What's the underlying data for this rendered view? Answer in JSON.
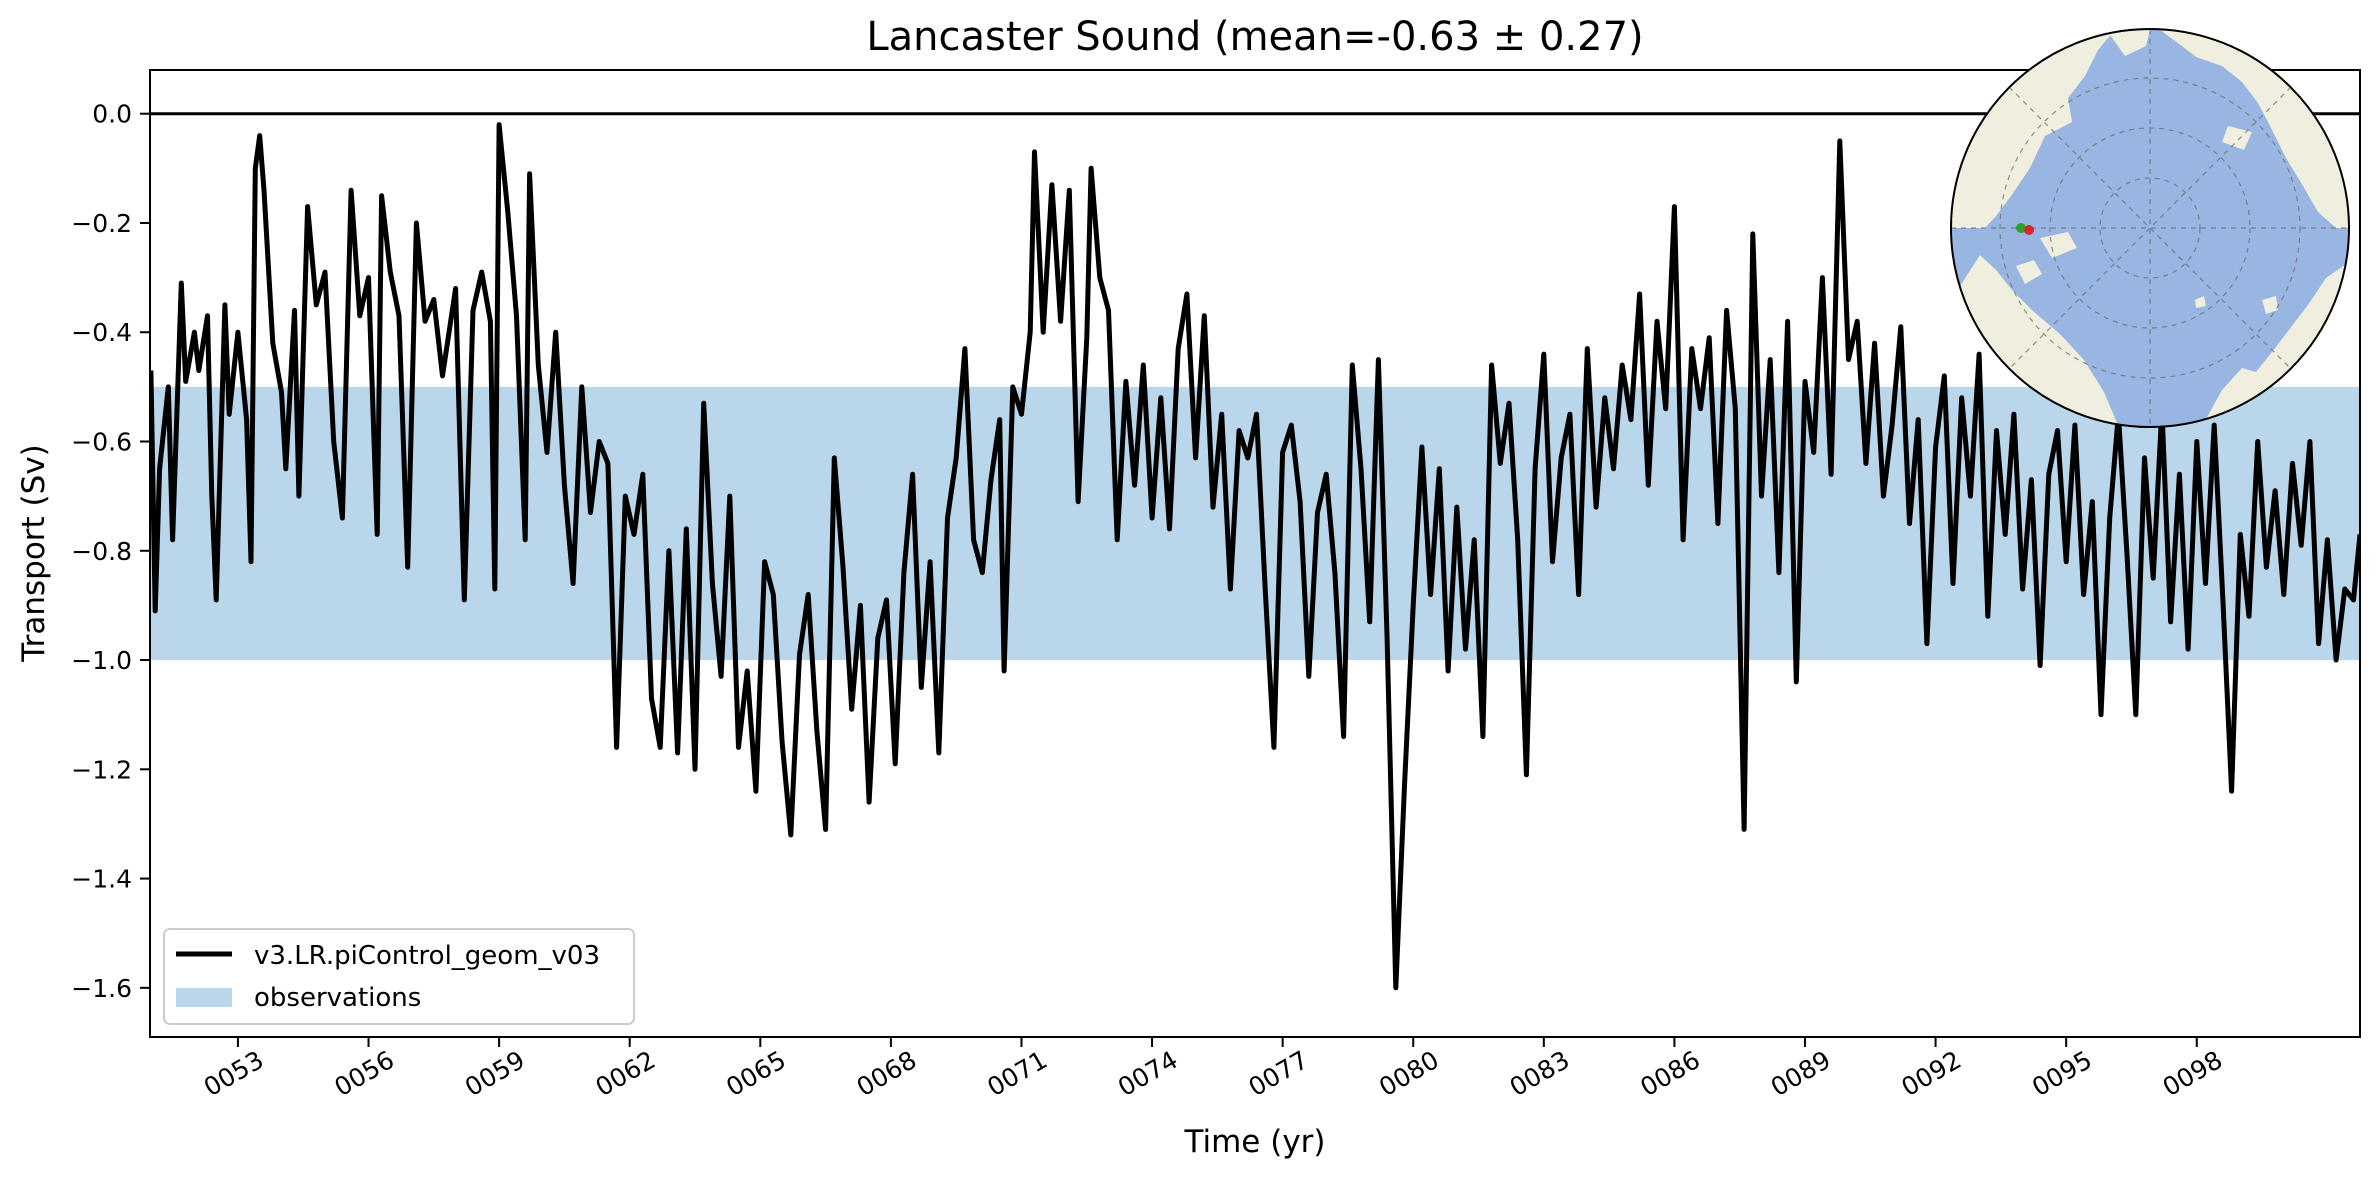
{
  "chart_data": {
    "type": "line",
    "title": "Lancaster Sound (mean=-0.63 ± 0.27)",
    "xlabel": "Time (yr)",
    "ylabel": "Transport (Sv)",
    "xlim": [
      50.98,
      101.75
    ],
    "ylim": [
      -1.69,
      0.08
    ],
    "xticks": [
      53,
      56,
      59,
      62,
      65,
      68,
      71,
      74,
      77,
      80,
      83,
      86,
      89,
      92,
      95,
      98
    ],
    "xtick_labels": [
      "0053",
      "0056",
      "0059",
      "0062",
      "0065",
      "0068",
      "0071",
      "0074",
      "0077",
      "0080",
      "0083",
      "0086",
      "0089",
      "0092",
      "0095",
      "0098"
    ],
    "yticks": [
      0.0,
      -0.2,
      -0.4,
      -0.6,
      -0.8,
      -1.0,
      -1.2,
      -1.4,
      -1.6
    ],
    "ytick_labels": [
      "0.0",
      "−0.2",
      "−0.4",
      "−0.6",
      "−0.8",
      "−1.0",
      "−1.2",
      "−1.4",
      "−1.6"
    ],
    "reference_line": 0.0,
    "observation_band": {
      "label": "observations",
      "ymin": -1.0,
      "ymax": -0.5,
      "color": "#bad6ea"
    },
    "series": [
      {
        "name": "v3.LR.piControl_geom_v03",
        "color": "#000000",
        "sampling": "monthly",
        "x_start": 51.0,
        "x_end": 101.75,
        "anchors": [
          [
            51.0,
            -0.47
          ],
          [
            51.1,
            -0.91
          ],
          [
            51.2,
            -0.65
          ],
          [
            51.4,
            -0.5
          ],
          [
            51.5,
            -0.78
          ],
          [
            51.7,
            -0.31
          ],
          [
            51.8,
            -0.49
          ],
          [
            52.0,
            -0.4
          ],
          [
            52.1,
            -0.47
          ],
          [
            52.3,
            -0.37
          ],
          [
            52.4,
            -0.7
          ],
          [
            52.5,
            -0.89
          ],
          [
            52.7,
            -0.35
          ],
          [
            52.8,
            -0.55
          ],
          [
            53.0,
            -0.4
          ],
          [
            53.2,
            -0.56
          ],
          [
            53.3,
            -0.82
          ],
          [
            53.4,
            -0.1
          ],
          [
            53.5,
            -0.04
          ],
          [
            53.6,
            -0.14
          ],
          [
            53.8,
            -0.42
          ],
          [
            54.0,
            -0.51
          ],
          [
            54.1,
            -0.65
          ],
          [
            54.3,
            -0.36
          ],
          [
            54.4,
            -0.7
          ],
          [
            54.6,
            -0.17
          ],
          [
            54.8,
            -0.35
          ],
          [
            55.0,
            -0.29
          ],
          [
            55.2,
            -0.6
          ],
          [
            55.4,
            -0.74
          ],
          [
            55.6,
            -0.14
          ],
          [
            55.8,
            -0.37
          ],
          [
            56.0,
            -0.3
          ],
          [
            56.2,
            -0.77
          ],
          [
            56.3,
            -0.15
          ],
          [
            56.5,
            -0.29
          ],
          [
            56.7,
            -0.37
          ],
          [
            56.9,
            -0.83
          ],
          [
            57.1,
            -0.2
          ],
          [
            57.3,
            -0.38
          ],
          [
            57.5,
            -0.34
          ],
          [
            57.7,
            -0.48
          ],
          [
            58.0,
            -0.32
          ],
          [
            58.2,
            -0.89
          ],
          [
            58.4,
            -0.36
          ],
          [
            58.6,
            -0.29
          ],
          [
            58.8,
            -0.38
          ],
          [
            58.9,
            -0.87
          ],
          [
            59.0,
            -0.02
          ],
          [
            59.2,
            -0.18
          ],
          [
            59.4,
            -0.37
          ],
          [
            59.6,
            -0.78
          ],
          [
            59.7,
            -0.11
          ],
          [
            59.9,
            -0.46
          ],
          [
            60.1,
            -0.62
          ],
          [
            60.3,
            -0.4
          ],
          [
            60.5,
            -0.68
          ],
          [
            60.7,
            -0.86
          ],
          [
            60.9,
            -0.5
          ],
          [
            61.1,
            -0.73
          ],
          [
            61.3,
            -0.6
          ],
          [
            61.5,
            -0.64
          ],
          [
            61.7,
            -1.16
          ],
          [
            61.9,
            -0.7
          ],
          [
            62.1,
            -0.77
          ],
          [
            62.3,
            -0.66
          ],
          [
            62.5,
            -1.07
          ],
          [
            62.7,
            -1.16
          ],
          [
            62.9,
            -0.8
          ],
          [
            63.1,
            -1.17
          ],
          [
            63.3,
            -0.76
          ],
          [
            63.5,
            -1.2
          ],
          [
            63.7,
            -0.53
          ],
          [
            63.9,
            -0.86
          ],
          [
            64.1,
            -1.03
          ],
          [
            64.3,
            -0.7
          ],
          [
            64.5,
            -1.16
          ],
          [
            64.7,
            -1.02
          ],
          [
            64.9,
            -1.24
          ],
          [
            65.1,
            -0.82
          ],
          [
            65.3,
            -0.88
          ],
          [
            65.5,
            -1.15
          ],
          [
            65.7,
            -1.32
          ],
          [
            65.9,
            -0.99
          ],
          [
            66.1,
            -0.88
          ],
          [
            66.3,
            -1.13
          ],
          [
            66.5,
            -1.31
          ],
          [
            66.7,
            -0.63
          ],
          [
            66.9,
            -0.83
          ],
          [
            67.1,
            -1.09
          ],
          [
            67.3,
            -0.9
          ],
          [
            67.5,
            -1.26
          ],
          [
            67.7,
            -0.96
          ],
          [
            67.9,
            -0.89
          ],
          [
            68.1,
            -1.19
          ],
          [
            68.3,
            -0.84
          ],
          [
            68.5,
            -0.66
          ],
          [
            68.7,
            -1.05
          ],
          [
            68.9,
            -0.82
          ],
          [
            69.1,
            -1.17
          ],
          [
            69.3,
            -0.74
          ],
          [
            69.5,
            -0.63
          ],
          [
            69.7,
            -0.43
          ],
          [
            69.9,
            -0.78
          ],
          [
            70.1,
            -0.84
          ],
          [
            70.3,
            -0.67
          ],
          [
            70.5,
            -0.56
          ],
          [
            70.6,
            -1.02
          ],
          [
            70.8,
            -0.5
          ],
          [
            71.0,
            -0.55
          ],
          [
            71.2,
            -0.4
          ],
          [
            71.3,
            -0.07
          ],
          [
            71.5,
            -0.4
          ],
          [
            71.7,
            -0.13
          ],
          [
            71.9,
            -0.38
          ],
          [
            72.1,
            -0.14
          ],
          [
            72.3,
            -0.71
          ],
          [
            72.5,
            -0.41
          ],
          [
            72.6,
            -0.1
          ],
          [
            72.8,
            -0.3
          ],
          [
            73.0,
            -0.36
          ],
          [
            73.2,
            -0.78
          ],
          [
            73.4,
            -0.49
          ],
          [
            73.6,
            -0.68
          ],
          [
            73.8,
            -0.46
          ],
          [
            74.0,
            -0.74
          ],
          [
            74.2,
            -0.52
          ],
          [
            74.4,
            -0.76
          ],
          [
            74.6,
            -0.43
          ],
          [
            74.8,
            -0.33
          ],
          [
            75.0,
            -0.63
          ],
          [
            75.2,
            -0.37
          ],
          [
            75.4,
            -0.72
          ],
          [
            75.6,
            -0.55
          ],
          [
            75.8,
            -0.87
          ],
          [
            76.0,
            -0.58
          ],
          [
            76.2,
            -0.63
          ],
          [
            76.4,
            -0.55
          ],
          [
            76.6,
            -0.87
          ],
          [
            76.8,
            -1.16
          ],
          [
            77.0,
            -0.62
          ],
          [
            77.2,
            -0.57
          ],
          [
            77.4,
            -0.71
          ],
          [
            77.6,
            -1.03
          ],
          [
            77.8,
            -0.73
          ],
          [
            78.0,
            -0.66
          ],
          [
            78.2,
            -0.84
          ],
          [
            78.4,
            -1.14
          ],
          [
            78.6,
            -0.46
          ],
          [
            78.8,
            -0.65
          ],
          [
            79.0,
            -0.93
          ],
          [
            79.2,
            -0.45
          ],
          [
            79.4,
            -0.96
          ],
          [
            79.6,
            -1.6
          ],
          [
            79.8,
            -1.23
          ],
          [
            80.0,
            -0.9
          ],
          [
            80.2,
            -0.61
          ],
          [
            80.4,
            -0.88
          ],
          [
            80.6,
            -0.65
          ],
          [
            80.8,
            -1.02
          ],
          [
            81.0,
            -0.72
          ],
          [
            81.2,
            -0.98
          ],
          [
            81.4,
            -0.78
          ],
          [
            81.6,
            -1.14
          ],
          [
            81.8,
            -0.46
          ],
          [
            82.0,
            -0.64
          ],
          [
            82.2,
            -0.53
          ],
          [
            82.4,
            -0.78
          ],
          [
            82.6,
            -1.21
          ],
          [
            82.8,
            -0.65
          ],
          [
            83.0,
            -0.44
          ],
          [
            83.2,
            -0.82
          ],
          [
            83.4,
            -0.63
          ],
          [
            83.6,
            -0.55
          ],
          [
            83.8,
            -0.88
          ],
          [
            84.0,
            -0.43
          ],
          [
            84.2,
            -0.72
          ],
          [
            84.4,
            -0.52
          ],
          [
            84.6,
            -0.65
          ],
          [
            84.8,
            -0.46
          ],
          [
            85.0,
            -0.56
          ],
          [
            85.2,
            -0.33
          ],
          [
            85.4,
            -0.68
          ],
          [
            85.6,
            -0.38
          ],
          [
            85.8,
            -0.54
          ],
          [
            86.0,
            -0.17
          ],
          [
            86.2,
            -0.78
          ],
          [
            86.4,
            -0.43
          ],
          [
            86.6,
            -0.54
          ],
          [
            86.8,
            -0.41
          ],
          [
            87.0,
            -0.75
          ],
          [
            87.2,
            -0.36
          ],
          [
            87.4,
            -0.54
          ],
          [
            87.6,
            -1.31
          ],
          [
            87.8,
            -0.22
          ],
          [
            88.0,
            -0.7
          ],
          [
            88.2,
            -0.45
          ],
          [
            88.4,
            -0.84
          ],
          [
            88.6,
            -0.38
          ],
          [
            88.8,
            -1.04
          ],
          [
            89.0,
            -0.49
          ],
          [
            89.2,
            -0.62
          ],
          [
            89.4,
            -0.3
          ],
          [
            89.6,
            -0.66
          ],
          [
            89.8,
            -0.05
          ],
          [
            90.0,
            -0.45
          ],
          [
            90.2,
            -0.38
          ],
          [
            90.4,
            -0.64
          ],
          [
            90.6,
            -0.42
          ],
          [
            90.8,
            -0.7
          ],
          [
            91.0,
            -0.57
          ],
          [
            91.2,
            -0.39
          ],
          [
            91.4,
            -0.75
          ],
          [
            91.6,
            -0.56
          ],
          [
            91.8,
            -0.97
          ],
          [
            92.0,
            -0.61
          ],
          [
            92.2,
            -0.48
          ],
          [
            92.4,
            -0.86
          ],
          [
            92.6,
            -0.52
          ],
          [
            92.8,
            -0.7
          ],
          [
            93.0,
            -0.44
          ],
          [
            93.2,
            -0.92
          ],
          [
            93.4,
            -0.58
          ],
          [
            93.6,
            -0.77
          ],
          [
            93.8,
            -0.55
          ],
          [
            94.0,
            -0.87
          ],
          [
            94.2,
            -0.67
          ],
          [
            94.4,
            -1.01
          ],
          [
            94.6,
            -0.66
          ],
          [
            94.8,
            -0.58
          ],
          [
            95.0,
            -0.82
          ],
          [
            95.2,
            -0.57
          ],
          [
            95.4,
            -0.88
          ],
          [
            95.6,
            -0.71
          ],
          [
            95.8,
            -1.1
          ],
          [
            96.0,
            -0.74
          ],
          [
            96.2,
            -0.55
          ],
          [
            96.4,
            -0.81
          ],
          [
            96.6,
            -1.1
          ],
          [
            96.8,
            -0.63
          ],
          [
            97.0,
            -0.85
          ],
          [
            97.2,
            -0.54
          ],
          [
            97.4,
            -0.93
          ],
          [
            97.6,
            -0.66
          ],
          [
            97.8,
            -0.98
          ],
          [
            98.0,
            -0.6
          ],
          [
            98.2,
            -0.86
          ],
          [
            98.4,
            -0.57
          ],
          [
            98.6,
            -0.89
          ],
          [
            98.8,
            -1.24
          ],
          [
            99.0,
            -0.77
          ],
          [
            99.2,
            -0.92
          ],
          [
            99.4,
            -0.6
          ],
          [
            99.6,
            -0.83
          ],
          [
            99.8,
            -0.69
          ],
          [
            100.0,
            -0.88
          ],
          [
            100.2,
            -0.64
          ],
          [
            100.4,
            -0.79
          ],
          [
            100.6,
            -0.6
          ],
          [
            100.8,
            -0.97
          ],
          [
            101.0,
            -0.78
          ],
          [
            101.2,
            -1.0
          ],
          [
            101.4,
            -0.87
          ],
          [
            101.6,
            -0.89
          ],
          [
            101.75,
            -0.77
          ]
        ]
      }
    ],
    "legend": {
      "location": "lower-left",
      "entries": [
        {
          "label": "v3.LR.piControl_geom_v03",
          "kind": "line",
          "color": "#000000"
        },
        {
          "label": "observations",
          "kind": "patch",
          "color": "#bad6ea"
        }
      ]
    },
    "inset_map": {
      "projection": "north-polar-stereographic",
      "location": "top-right",
      "ocean_color": "#99b6e2",
      "land_color": "#efeedf",
      "gridlines": true,
      "section_markers": [
        {
          "name": "section-start",
          "color": "#2ca02c"
        },
        {
          "name": "section-end",
          "color": "#d62728"
        }
      ]
    }
  }
}
